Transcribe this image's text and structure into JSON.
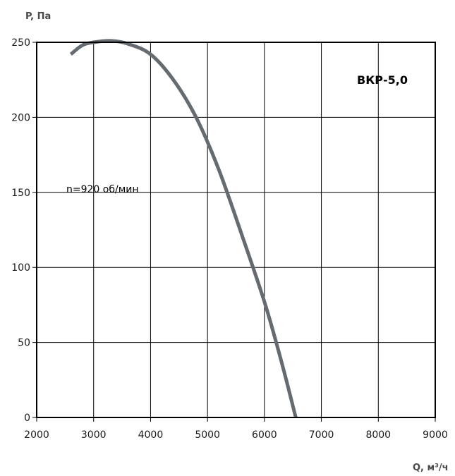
{
  "chart_data": {
    "type": "line",
    "title": "ВКР-5,0",
    "xlabel": "Q, м³/ч",
    "ylabel": "P, Па",
    "annotation": "n=920 об/мин",
    "xlim": [
      2000,
      9000
    ],
    "ylim": [
      0,
      250
    ],
    "x_ticks": [
      2000,
      3000,
      4000,
      5000,
      6000,
      7000,
      8000,
      9000
    ],
    "y_ticks": [
      0,
      50,
      100,
      150,
      200,
      250
    ],
    "x_tick_labels": [
      "2000",
      "3000",
      "4000",
      "5000",
      "6000",
      "7000",
      "8000",
      "9000"
    ],
    "y_tick_labels": [
      "0",
      "50",
      "100",
      "150",
      "200",
      "250"
    ],
    "grid": true,
    "series": [
      {
        "color": "#656b70",
        "x": [
          2600,
          2800,
          3000,
          3300,
          3600,
          4000,
          4400,
          4800,
          5200,
          5600,
          6000,
          6300,
          6550
        ],
        "y": [
          242,
          248,
          250,
          251,
          249,
          242,
          225,
          200,
          165,
          122,
          77,
          37,
          0
        ]
      }
    ]
  }
}
